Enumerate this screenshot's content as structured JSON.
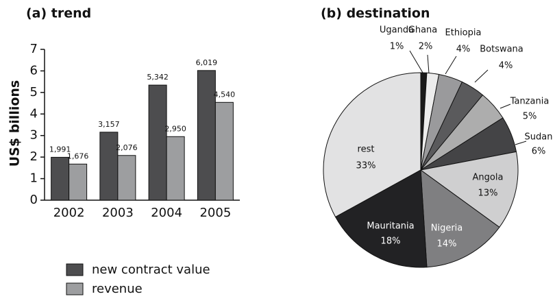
{
  "chart_data": [
    {
      "type": "bar",
      "title": "(a) trend",
      "ylabel": "US$ billions",
      "categories": [
        "2002",
        "2003",
        "2004",
        "2005"
      ],
      "series": [
        {
          "name": "new contract value",
          "color": "#4d4d4f",
          "values": [
            1.991,
            3.157,
            5.342,
            6.019
          ],
          "value_labels": [
            "1,991",
            "3,157",
            "5,342",
            "6,019"
          ]
        },
        {
          "name": "revenue",
          "color": "#9d9ea0",
          "values": [
            1.676,
            2.076,
            2.95,
            4.54
          ],
          "value_labels": [
            "1,676",
            "2,076",
            "2,950",
            "4,540"
          ]
        }
      ],
      "ylim": [
        0,
        7
      ],
      "yticks": [
        0,
        1,
        2,
        3,
        4,
        5,
        6,
        7
      ]
    },
    {
      "type": "pie",
      "title": "(b) destination",
      "categories": [
        "Uganda",
        "Ghana",
        "Ethiopia",
        "Botswana",
        "Tanzania",
        "Sudan",
        "Angola",
        "Nigeria",
        "Mauritania",
        "rest"
      ],
      "values": [
        1,
        2,
        4,
        4,
        5,
        6,
        13,
        14,
        18,
        33
      ],
      "value_labels": [
        "1%",
        "2%",
        "4%",
        "4%",
        "5%",
        "6%",
        "13%",
        "14%",
        "18%",
        "33%"
      ],
      "colors": [
        "#1a1a1a",
        "#ececec",
        "#9a9a9c",
        "#5a5a5c",
        "#adadad",
        "#444446",
        "#cfcfd0",
        "#7f7f81",
        "#222224",
        "#e2e2e3"
      ]
    }
  ]
}
